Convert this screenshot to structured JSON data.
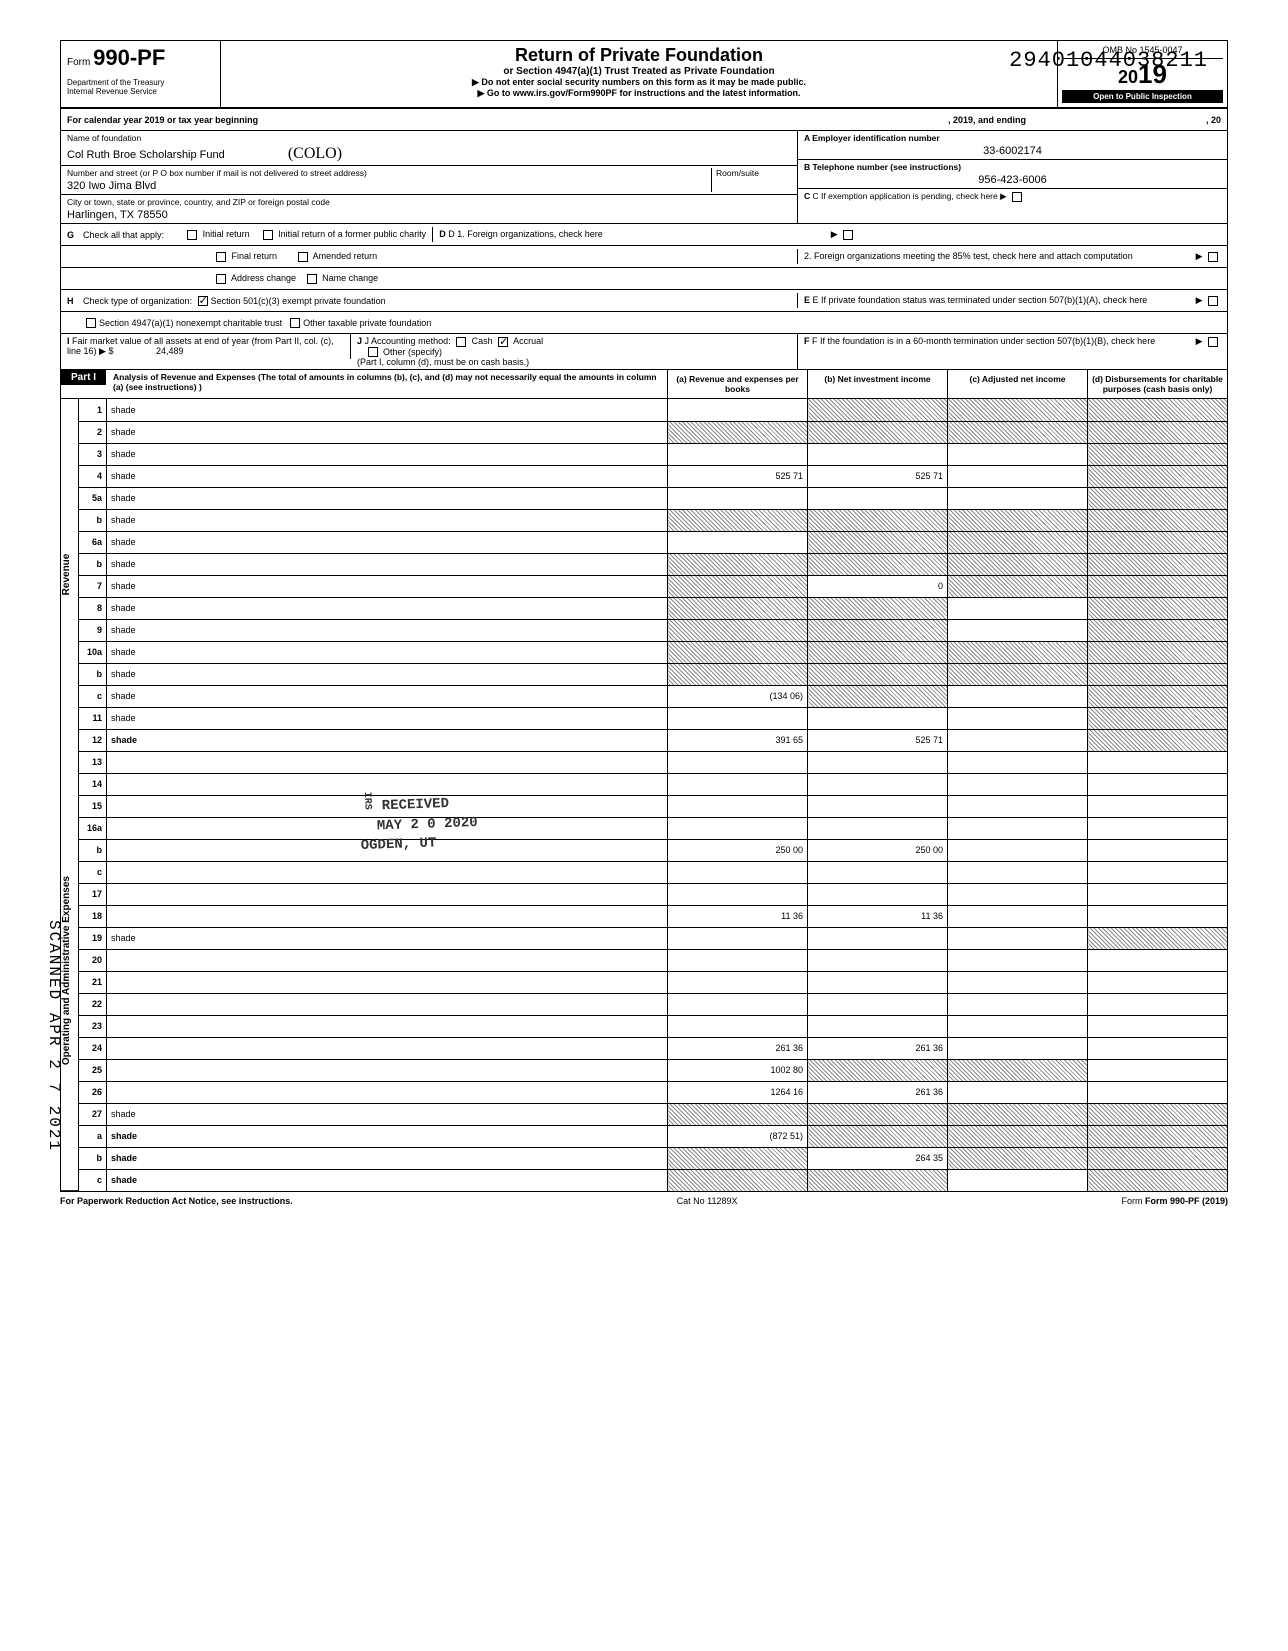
{
  "dln": "29401044038211",
  "form": {
    "number": "990-PF",
    "title": "Return of Private Foundation",
    "subtitle": "or Section 4947(a)(1) Trust Treated as Private Foundation",
    "warn": "▶ Do not enter social security numbers on this form as it may be made public.",
    "goto": "▶ Go to www.irs.gov/Form990PF for instructions and the latest information.",
    "dept1": "Department of the Treasury",
    "dept2": "Internal Revenue Service",
    "omb": "OMB No 1545-0047",
    "year": "2019",
    "inspect": "Open to Public Inspection"
  },
  "cal": {
    "line": "For calendar year 2019 or tax year beginning",
    "mid": ", 2019, and ending",
    "end": ", 20"
  },
  "id": {
    "name_lbl": "Name of foundation",
    "name": "Col Ruth Broe Scholarship Fund",
    "name_hand": "(COLO)",
    "addr_lbl": "Number and street (or P O box number if mail is not delivered to street address)",
    "room_lbl": "Room/suite",
    "addr": "320 Iwo Jima Blvd",
    "city_lbl": "City or town, state or province, country, and ZIP or foreign postal code",
    "city": "Harlingen, TX 78550",
    "ein_lbl": "A  Employer identification number",
    "ein": "33-6002174",
    "tel_lbl": "B  Telephone number (see instructions)",
    "tel": "956-423-6006",
    "c_lbl": "C  If exemption application is pending, check here ▶"
  },
  "g": {
    "label": "Check all that apply:",
    "opts": [
      "Initial return",
      "Initial return of a former public charity",
      "Final return",
      "Amended return",
      "Address change",
      "Name change"
    ],
    "d1": "D  1. Foreign organizations, check here",
    "d2": "2. Foreign organizations meeting the 85% test, check here and attach computation"
  },
  "h": {
    "label": "Check type of organization:",
    "o1": "Section 501(c)(3) exempt private foundation",
    "o2": "Section 4947(a)(1) nonexempt charitable trust",
    "o3": "Other taxable private foundation",
    "e": "E  If private foundation status was terminated under section 507(b)(1)(A), check here"
  },
  "i": {
    "label": "Fair market value of all assets at end of year (from Part II, col. (c), line 16) ▶ $",
    "val": "24,489",
    "j": "J  Accounting method:",
    "j1": "Cash",
    "j2": "Accrual",
    "j3": "Other (specify)",
    "jnote": "(Part I, column (d), must be on cash basis.)",
    "f": "F  If the foundation is in a 60-month termination under section 507(b)(1)(B), check here"
  },
  "part1": {
    "label": "Part I",
    "head": "Analysis of Revenue and Expenses (The total of amounts in columns (b), (c), and (d) may not necessarily equal the amounts in column (a) (see instructions) )",
    "cols": {
      "a": "(a) Revenue and expenses per books",
      "b": "(b) Net investment income",
      "c": "(c) Adjusted net income",
      "d": "(d) Disbursements for charitable purposes (cash basis only)"
    }
  },
  "sections": {
    "rev": "Revenue",
    "exp": "Operating and Administrative Expenses"
  },
  "rows": [
    {
      "n": "1",
      "d": "shade",
      "a": "",
      "b": "shade",
      "c": "shade"
    },
    {
      "n": "2",
      "d": "shade",
      "a": "shade",
      "b": "shade",
      "c": "shade"
    },
    {
      "n": "3",
      "d": "shade",
      "a": "",
      "b": "",
      "c": ""
    },
    {
      "n": "4",
      "d": "shade",
      "a": "525 71",
      "b": "525 71",
      "c": ""
    },
    {
      "n": "5a",
      "d": "shade",
      "a": "",
      "b": "",
      "c": ""
    },
    {
      "n": "b",
      "d": "shade",
      "a": "shade",
      "b": "shade",
      "c": "shade"
    },
    {
      "n": "6a",
      "d": "shade",
      "a": "",
      "b": "shade",
      "c": "shade"
    },
    {
      "n": "b",
      "d": "shade",
      "a": "shade",
      "b": "shade",
      "c": "shade"
    },
    {
      "n": "7",
      "d": "shade",
      "a": "shade",
      "b": "0",
      "c": "shade"
    },
    {
      "n": "8",
      "d": "shade",
      "a": "shade",
      "b": "shade",
      "c": ""
    },
    {
      "n": "9",
      "d": "shade",
      "a": "shade",
      "b": "shade",
      "c": ""
    },
    {
      "n": "10a",
      "d": "shade",
      "a": "shade",
      "b": "shade",
      "c": "shade"
    },
    {
      "n": "b",
      "d": "shade",
      "a": "shade",
      "b": "shade",
      "c": "shade"
    },
    {
      "n": "c",
      "d": "shade",
      "a": "(134 06)",
      "b": "shade",
      "c": ""
    },
    {
      "n": "11",
      "d": "shade",
      "a": "",
      "b": "",
      "c": ""
    },
    {
      "n": "12",
      "d": "shade",
      "a": "391 65",
      "b": "525 71",
      "c": "",
      "bold": true
    },
    {
      "n": "13",
      "d": "",
      "a": "",
      "b": "",
      "c": ""
    },
    {
      "n": "14",
      "d": "",
      "a": "",
      "b": "",
      "c": ""
    },
    {
      "n": "15",
      "d": "",
      "a": "",
      "b": "",
      "c": ""
    },
    {
      "n": "16a",
      "d": "",
      "a": "",
      "b": "",
      "c": ""
    },
    {
      "n": "b",
      "d": "",
      "a": "250 00",
      "b": "250 00",
      "c": ""
    },
    {
      "n": "c",
      "d": "",
      "a": "",
      "b": "",
      "c": ""
    },
    {
      "n": "17",
      "d": "",
      "a": "",
      "b": "",
      "c": ""
    },
    {
      "n": "18",
      "d": "",
      "a": "11 36",
      "b": "11 36",
      "c": ""
    },
    {
      "n": "19",
      "d": "shade",
      "a": "",
      "b": "",
      "c": ""
    },
    {
      "n": "20",
      "d": "",
      "a": "",
      "b": "",
      "c": ""
    },
    {
      "n": "21",
      "d": "",
      "a": "",
      "b": "",
      "c": ""
    },
    {
      "n": "22",
      "d": "",
      "a": "",
      "b": "",
      "c": ""
    },
    {
      "n": "23",
      "d": "",
      "a": "",
      "b": "",
      "c": ""
    },
    {
      "n": "24",
      "d": "",
      "a": "261 36",
      "b": "261 36",
      "c": "",
      "bold": true
    },
    {
      "n": "25",
      "d": "",
      "a": "1002 80",
      "b": "shade",
      "c": "shade"
    },
    {
      "n": "26",
      "d": "",
      "a": "1264 16",
      "b": "261 36",
      "c": "",
      "bold": true
    },
    {
      "n": "27",
      "d": "shade",
      "a": "shade",
      "b": "shade",
      "c": "shade"
    },
    {
      "n": "a",
      "d": "shade",
      "a": "(872 51)",
      "b": "shade",
      "c": "shade",
      "bold": true
    },
    {
      "n": "b",
      "d": "shade",
      "a": "shade",
      "b": "264 35",
      "c": "shade",
      "bold": true
    },
    {
      "n": "c",
      "d": "shade",
      "a": "shade",
      "b": "shade",
      "c": "",
      "bold": true
    }
  ],
  "footer": {
    "pra": "For Paperwork Reduction Act Notice, see instructions.",
    "cat": "Cat No 11289X",
    "form": "Form 990-PF (2019)"
  },
  "stamps": {
    "received": "RECEIVED",
    "date": "MAY 2 0 2020",
    "ogden": "OGDEN, UT",
    "irs": "IRS",
    "scanned": "SCANNED APR 2 7 2021"
  }
}
